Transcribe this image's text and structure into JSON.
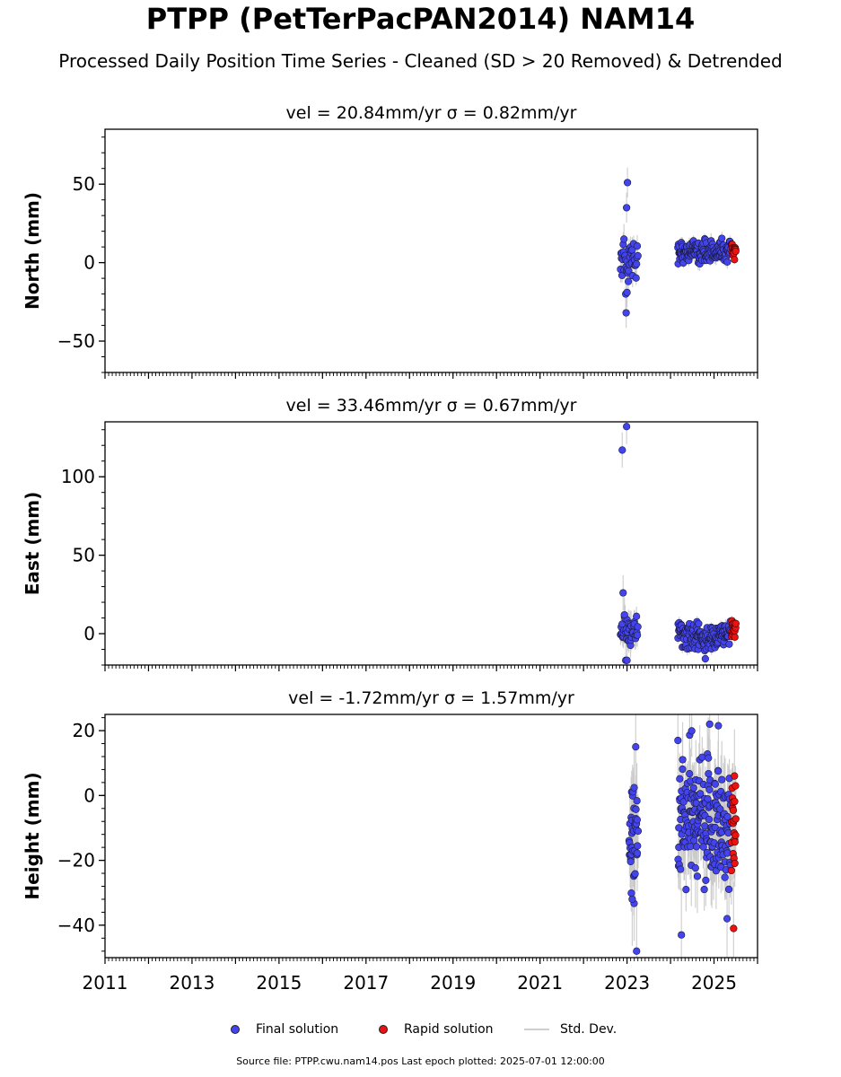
{
  "title": "PTPP (PetTerPacPAN2014) NAM14",
  "subtitle": "Processed Daily Position Time Series - Cleaned (SD > 20 Removed) & Detrended",
  "footer": {
    "source": "Source file: PTPP.cwu.nam14.pos  Last epoch plotted: 2025-07-01 12:00:00"
  },
  "legend": {
    "final_label": "Final solution",
    "rapid_label": "Rapid solution",
    "std_label": "Std. Dev."
  },
  "colors": {
    "final": "#4444ee",
    "rapid": "#ee1111",
    "std": "#c8c8c8",
    "axis": "#000000"
  },
  "chart_data": [
    {
      "type": "scatter",
      "title": "vel = 20.84mm/yr   σ = 0.82mm/yr",
      "xlabel": "",
      "ylabel": "North (mm)",
      "xlim": [
        2011,
        2026
      ],
      "ylim": [
        -70,
        85
      ],
      "xticks": [
        2011,
        2013,
        2015,
        2017,
        2019,
        2021,
        2023,
        2025
      ],
      "xticklabels": [],
      "yticks": [
        -50,
        0,
        50
      ],
      "yticklabels": [
        "−50",
        "0",
        "50"
      ],
      "grid": false,
      "final_segments": [
        {
          "x_start": 2022.85,
          "x_end": 2023.25,
          "mean": 3,
          "spread": 7,
          "n": 38,
          "err": 6,
          "outliers": [
            [
              2023.01,
              51
            ],
            [
              2022.99,
              35
            ],
            [
              2022.98,
              -32
            ],
            [
              2022.97,
              -20
            ],
            [
              2023.0,
              -19
            ],
            [
              2022.93,
              15
            ],
            [
              2023.03,
              -12
            ]
          ]
        },
        {
          "x_start": 2024.17,
          "x_end": 2025.38,
          "mean": 7,
          "spread": 3.2,
          "n": 160,
          "err": 3.5,
          "outliers": []
        }
      ],
      "rapid_segments": [
        {
          "x_start": 2025.4,
          "x_end": 2025.5,
          "mean": 8,
          "spread": 2.5,
          "n": 16,
          "err": 3,
          "outliers": []
        }
      ]
    },
    {
      "type": "scatter",
      "title": "vel = 33.46mm/yr   σ = 0.67mm/yr",
      "xlabel": "",
      "ylabel": "East (mm)",
      "xlim": [
        2011,
        2026
      ],
      "ylim": [
        -20,
        135
      ],
      "xticks": [
        2011,
        2013,
        2015,
        2017,
        2019,
        2021,
        2023,
        2025
      ],
      "xticklabels": [],
      "yticks": [
        0,
        50,
        100
      ],
      "yticklabels": [
        "0",
        "50",
        "100"
      ],
      "grid": false,
      "final_segments": [
        {
          "x_start": 2022.85,
          "x_end": 2023.25,
          "mean": 2,
          "spread": 4.5,
          "n": 38,
          "err": 7,
          "outliers": [
            [
              2022.89,
              117
            ],
            [
              2022.99,
              132
            ],
            [
              2022.91,
              26
            ],
            [
              2022.97,
              -17
            ],
            [
              2023.0,
              -17
            ],
            [
              2022.94,
              12
            ]
          ]
        },
        {
          "x_start": 2024.17,
          "x_end": 2025.38,
          "mean": -1,
          "spread": 4,
          "n": 160,
          "err": 3,
          "outliers": [
            [
              2024.8,
              -16
            ]
          ],
          "trend": "valley"
        }
      ],
      "rapid_segments": [
        {
          "x_start": 2025.4,
          "x_end": 2025.5,
          "mean": 2,
          "spread": 3,
          "n": 16,
          "err": 3,
          "outliers": []
        }
      ]
    },
    {
      "type": "scatter",
      "title": "vel = -1.72mm/yr   σ = 1.57mm/yr",
      "xlabel": "",
      "ylabel": "Height (mm)",
      "xlim": [
        2011,
        2026
      ],
      "ylim": [
        -50,
        25
      ],
      "xticks": [
        2011,
        2013,
        2015,
        2017,
        2019,
        2021,
        2023,
        2025
      ],
      "xticklabels": [
        "2011",
        "2013",
        "2015",
        "2017",
        "2019",
        "2021",
        "2023",
        "2025"
      ],
      "yticks": [
        -40,
        -20,
        0,
        20
      ],
      "yticklabels": [
        "−40",
        "−20",
        "0",
        "20"
      ],
      "grid": false,
      "final_segments": [
        {
          "x_start": 2023.05,
          "x_end": 2023.25,
          "mean": -12,
          "spread": 10,
          "n": 40,
          "err": 9,
          "outliers": [
            [
              2023.22,
              -48
            ],
            [
              2023.2,
              15
            ],
            [
              2023.12,
              -32
            ]
          ]
        },
        {
          "x_start": 2024.17,
          "x_end": 2025.38,
          "mean": -8,
          "spread": 10,
          "n": 200,
          "err": 9,
          "outliers": [
            [
              2024.25,
              -43
            ],
            [
              2024.9,
              22
            ],
            [
              2025.1,
              21.5
            ],
            [
              2025.3,
              -38
            ]
          ]
        }
      ],
      "rapid_segments": [
        {
          "x_start": 2025.4,
          "x_end": 2025.5,
          "mean": -12,
          "spread": 8,
          "n": 20,
          "err": 9,
          "outliers": [
            [
              2025.45,
              -41
            ],
            [
              2025.47,
              6
            ]
          ]
        }
      ]
    }
  ]
}
